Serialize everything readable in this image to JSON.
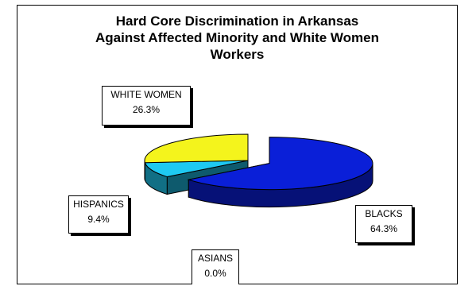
{
  "chart_data": {
    "type": "pie",
    "title": "Hard Core Discrimination in Arkansas\nAgainst Affected Minority and White Women\nWorkers",
    "slices": [
      {
        "label": "BLACKS",
        "value": 64.3,
        "value_label": "64.3%",
        "color": "#0a1fd8",
        "exploded": true
      },
      {
        "label": "ASIANS",
        "value": 0.0,
        "value_label": "0.0%",
        "color": "#2b2b2b",
        "exploded": false
      },
      {
        "label": "HISPANICS",
        "value": 9.4,
        "value_label": "9.4%",
        "color": "#1ec9f2",
        "exploded": false
      },
      {
        "label": "WHITE WOMEN",
        "value": 26.3,
        "value_label": "26.3%",
        "color": "#f4f41c",
        "exploded": false
      }
    ],
    "style": "3d-exploded",
    "legend": "none"
  }
}
